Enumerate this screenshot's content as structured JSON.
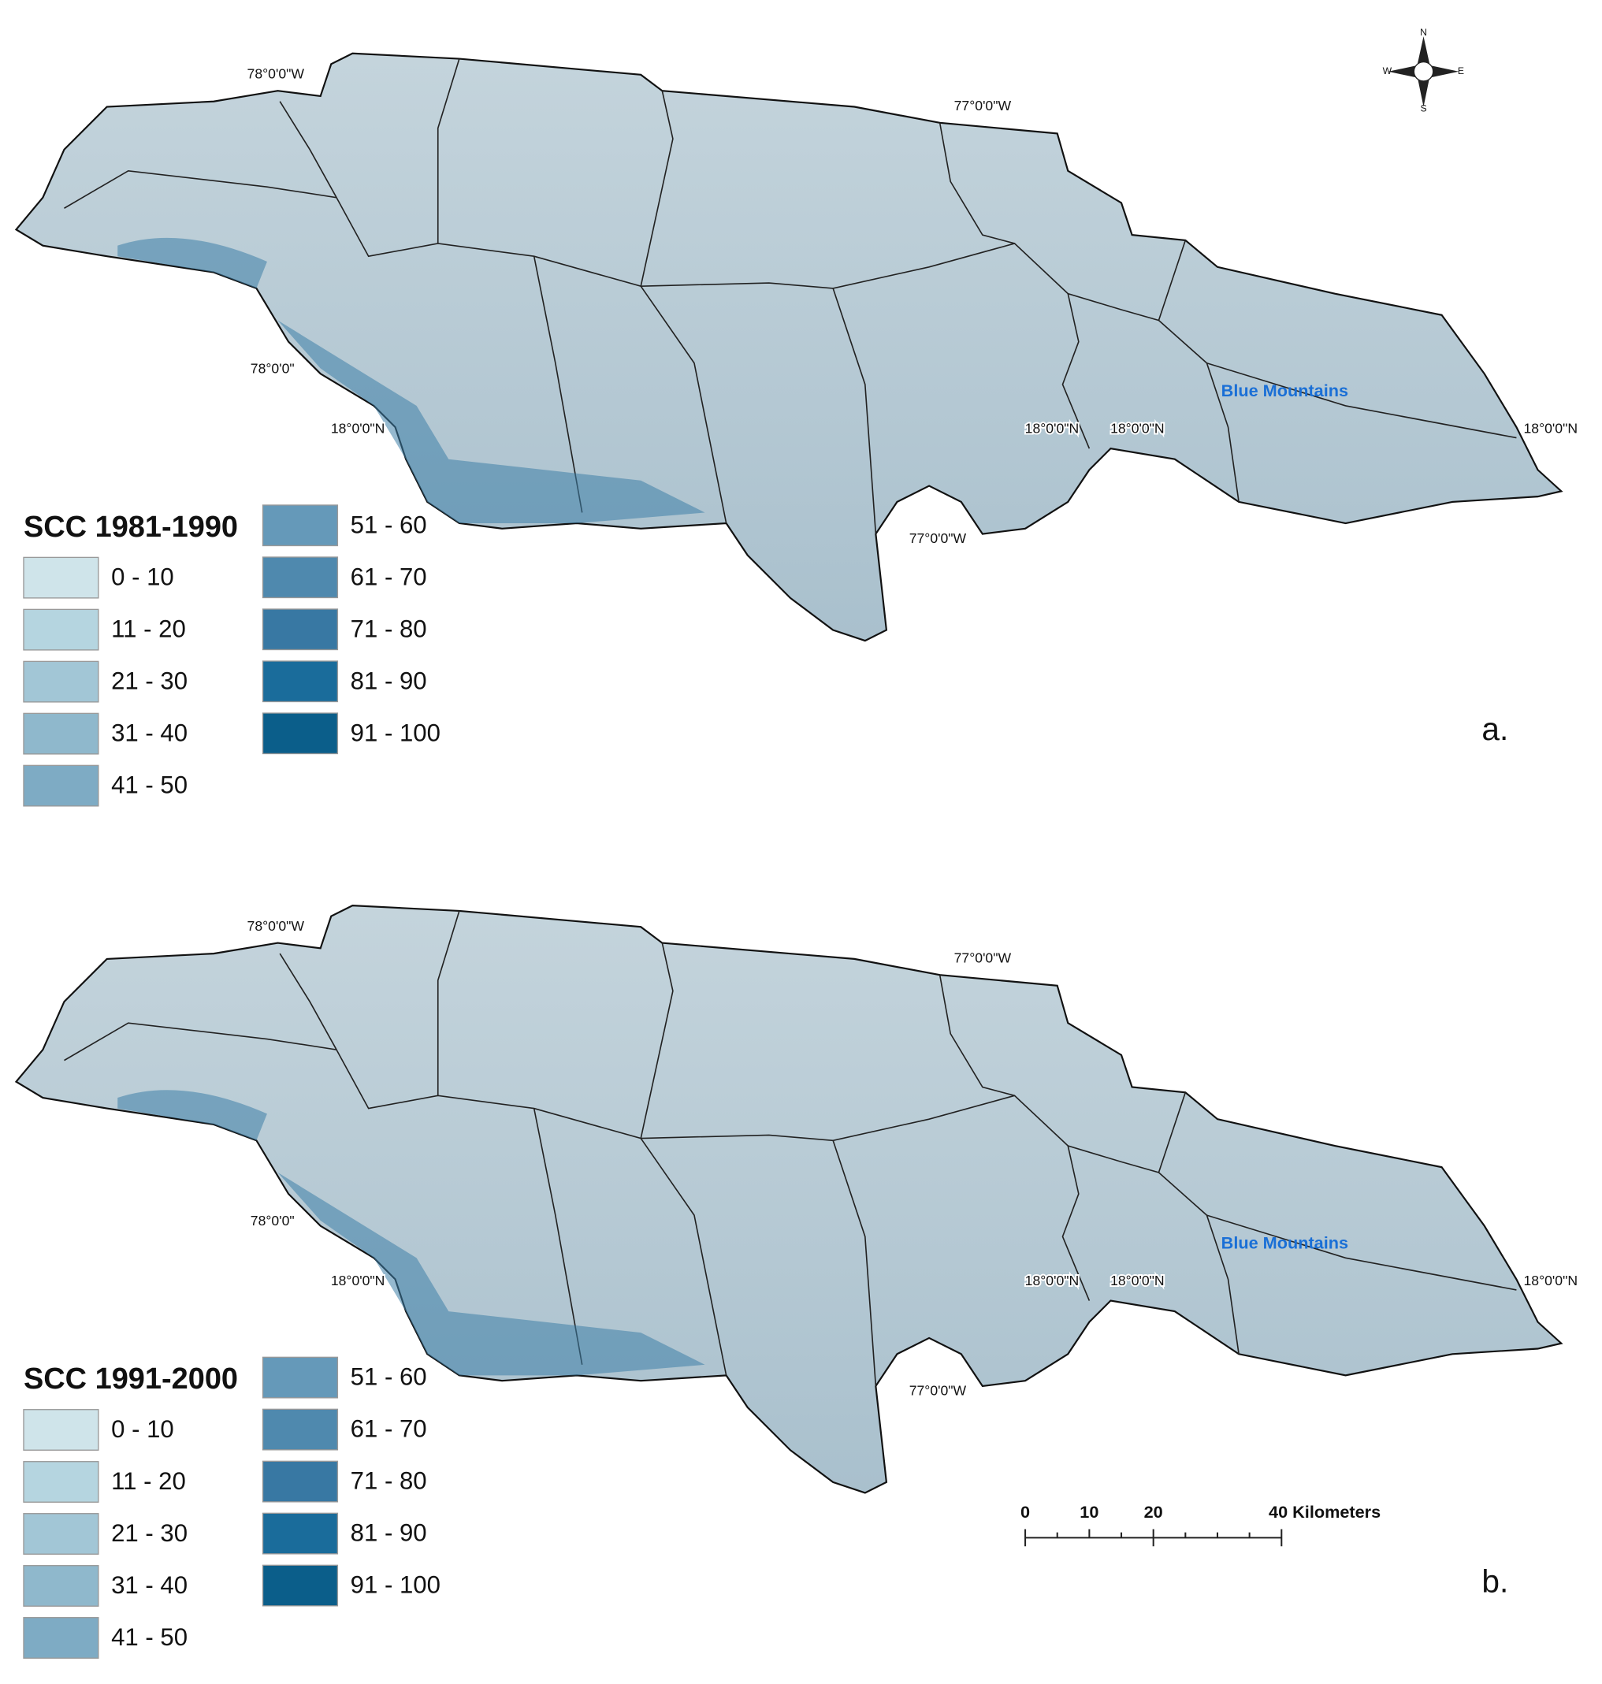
{
  "panels": [
    {
      "legend_title": "SCC 1981-1990",
      "panel_letter": "a.",
      "place_label": "Blue Mountains",
      "coordinate_labels": [
        "78°0'0\"W",
        "77°0'0\"W",
        "78°0'0\"",
        "18°0'0\"N",
        "18°0'0\"N",
        "18°0'0\"N",
        "18°0'0\"N",
        "77°0'0\"W"
      ],
      "legend": [
        {
          "label": "0 - 10",
          "color": "#cfe4ea"
        },
        {
          "label": "11 - 20",
          "color": "#b5d5e0"
        },
        {
          "label": "21 - 30",
          "color": "#a2c6d6"
        },
        {
          "label": "31 - 40",
          "color": "#8fb8cc"
        },
        {
          "label": "41 - 50",
          "color": "#7eabc4"
        },
        {
          "label": "51 - 60",
          "color": "#6599b9"
        },
        {
          "label": "61 - 70",
          "color": "#4f89ae"
        },
        {
          "label": "71 - 80",
          "color": "#3878a3"
        },
        {
          "label": "81 - 90",
          "color": "#1a6c9b"
        },
        {
          "label": "91 - 100",
          "color": "#0b5e8a"
        }
      ]
    },
    {
      "legend_title": "SCC 1991-2000",
      "panel_letter": "b.",
      "place_label": "Blue Mountains",
      "coordinate_labels": [
        "78°0'0\"W",
        "77°0'0\"W",
        "78°0'0\"",
        "18°0'0\"N",
        "18°0'0\"N",
        "18°0'0\"N",
        "18°0'0\"N",
        "77°0'0\"W"
      ],
      "legend": [
        {
          "label": "0 - 10",
          "color": "#cfe4ea"
        },
        {
          "label": "11 - 20",
          "color": "#b5d5e0"
        },
        {
          "label": "21 - 30",
          "color": "#a2c6d6"
        },
        {
          "label": "31 - 40",
          "color": "#8fb8cc"
        },
        {
          "label": "41 - 50",
          "color": "#7eabc4"
        },
        {
          "label": "51 - 60",
          "color": "#6599b9"
        },
        {
          "label": "61 - 70",
          "color": "#4f89ae"
        },
        {
          "label": "71 - 80",
          "color": "#3878a3"
        },
        {
          "label": "81 - 90",
          "color": "#1a6c9b"
        },
        {
          "label": "91 - 100",
          "color": "#0b5e8a"
        }
      ]
    }
  ],
  "compass": {
    "n": "N",
    "s": "S",
    "e": "E",
    "w": "W"
  },
  "scale_bar": {
    "ticks": [
      "0",
      "10",
      "20"
    ],
    "unit_label": "40 Kilometers"
  }
}
